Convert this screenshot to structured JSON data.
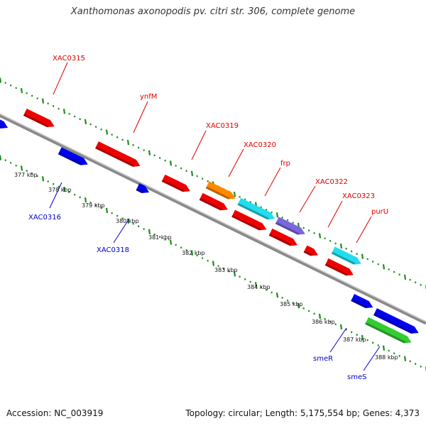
{
  "title": "Xanthomonas axonopodis pv. citri str. 306, complete genome",
  "footer": {
    "accession": "Accession: NC_003919",
    "summary": "Topology: circular; Length: 5,175,554 bp; Genes: 4,373"
  },
  "colors": {
    "backbone": "#8a8a8a",
    "ticks": "#1e8c1e",
    "red": "#ee0000",
    "blue": "#0000ee",
    "orange": "#ff8800",
    "cyan": "#22ddee",
    "purple": "#7a66dd",
    "green": "#33cc33"
  },
  "kbp_labels": [
    "377 kbp",
    "378 kbp",
    "379 kbp",
    "380 kbp",
    "381 kbp",
    "382 kbp",
    "383 kbp",
    "384 kbp",
    "385 kbp",
    "386 kbp",
    "387 kbp",
    "388 kbp"
  ],
  "gene_labels_top": [
    "XAC0315",
    "ynfM",
    "XAC0319",
    "XAC0320",
    "frp",
    "XAC0322",
    "XAC0323",
    "purU"
  ],
  "gene_labels_bottom": [
    "XAC0316",
    "XAC0318",
    "smeR",
    "smeS"
  ]
}
